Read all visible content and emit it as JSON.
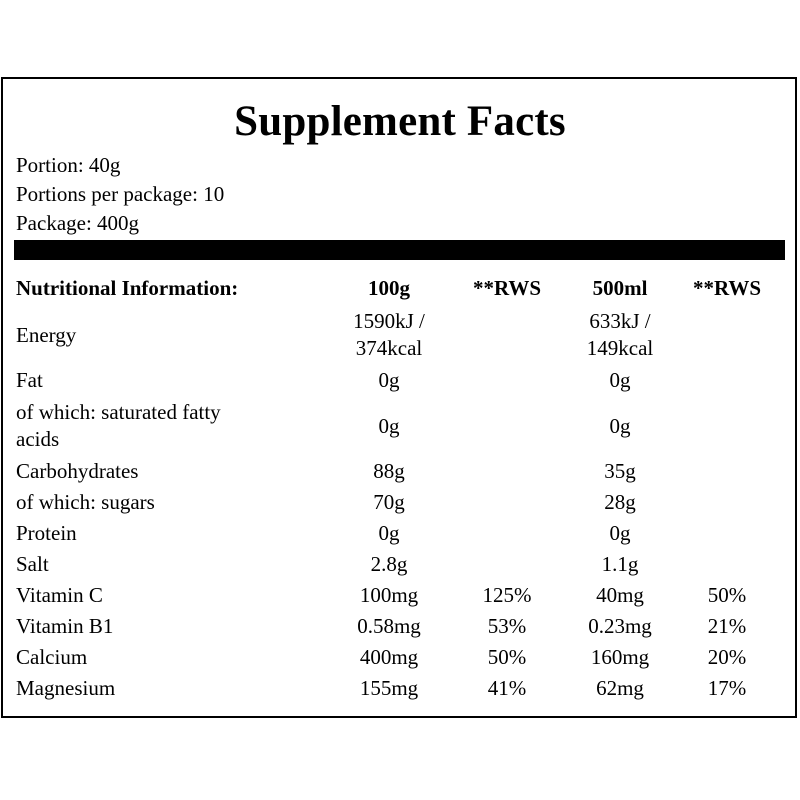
{
  "title": "Supplement Facts",
  "portion": "Portion: 40g",
  "portions_per_package": "Portions per package: 10",
  "package": "Package: 400g",
  "table": {
    "headers": [
      "Nutritional Information:",
      "100g",
      "**RWS",
      "500ml",
      "**RWS"
    ],
    "rows": [
      {
        "name": "Energy",
        "v1": "1590kJ /\n374kcal",
        "r1": "",
        "v2": "633kJ /\n149kcal",
        "r2": ""
      },
      {
        "name": "Fat",
        "v1": "0g",
        "r1": "",
        "v2": "0g",
        "r2": ""
      },
      {
        "name": "of which: saturated fatty\nacids",
        "v1": "0g",
        "r1": "",
        "v2": "0g",
        "r2": ""
      },
      {
        "name": "Carbohydrates",
        "v1": "88g",
        "r1": "",
        "v2": "35g",
        "r2": ""
      },
      {
        "name": "of which: sugars",
        "v1": "70g",
        "r1": "",
        "v2": "28g",
        "r2": ""
      },
      {
        "name": "Protein",
        "v1": "0g",
        "r1": "",
        "v2": "0g",
        "r2": ""
      },
      {
        "name": "Salt",
        "v1": "2.8g",
        "r1": "",
        "v2": "1.1g",
        "r2": ""
      },
      {
        "name": "Vitamin C",
        "v1": "100mg",
        "r1": "125%",
        "v2": "40mg",
        "r2": "50%"
      },
      {
        "name": "Vitamin B1",
        "v1": "0.58mg",
        "r1": "53%",
        "v2": "0.23mg",
        "r2": "21%"
      },
      {
        "name": "Calcium",
        "v1": "400mg",
        "r1": "50%",
        "v2": "160mg",
        "r2": "20%"
      },
      {
        "name": "Magnesium",
        "v1": "155mg",
        "r1": "41%",
        "v2": "62mg",
        "r2": "17%"
      }
    ]
  }
}
